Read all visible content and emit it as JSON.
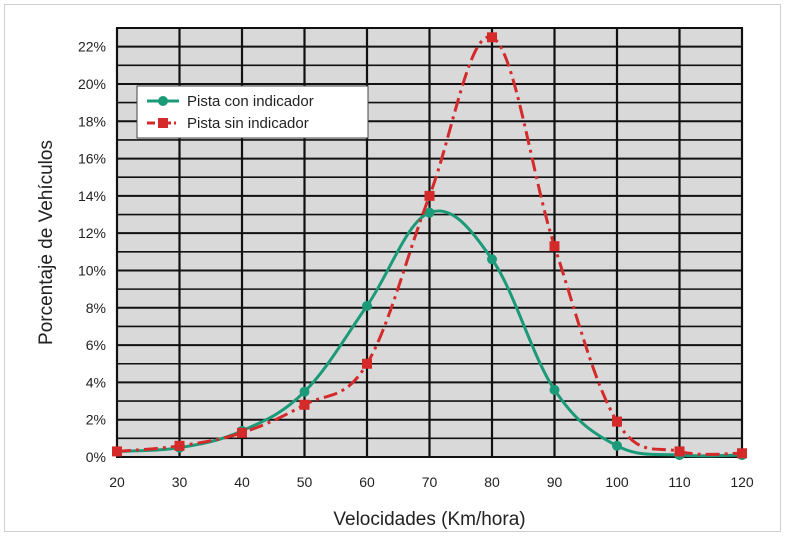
{
  "chart_data": {
    "type": "line",
    "xlabel": "Velocidades (Km/hora)",
    "ylabel": "Porcentaje de Vehículos",
    "x_ticks": [
      "20",
      "30",
      "40",
      "50",
      "60",
      "70",
      "80",
      "90",
      "100",
      "110",
      "120"
    ],
    "y_ticks": [
      "0%",
      "2%",
      "4%",
      "6%",
      "8%",
      "10%",
      "12%",
      "14%",
      "16%",
      "18%",
      "20%",
      "22%"
    ],
    "xlim": [
      20,
      120
    ],
    "ylim": [
      0,
      23
    ],
    "grid": true,
    "legend_position": "top-left",
    "series": [
      {
        "name": "Pista con indicador",
        "color": "#1a9a78",
        "marker": "circle",
        "line_style": "solid",
        "x": [
          20,
          30,
          40,
          50,
          60,
          70,
          80,
          90,
          100,
          110,
          120
        ],
        "y": [
          0.3,
          0.5,
          1.4,
          3.5,
          8.1,
          13.1,
          10.6,
          3.6,
          0.6,
          0.1,
          0.1
        ]
      },
      {
        "name": "Pista sin indicador",
        "color": "#d42a2a",
        "marker": "square",
        "line_style": "dash-dot",
        "x": [
          20,
          30,
          40,
          50,
          60,
          70,
          80,
          90,
          100,
          110,
          120
        ],
        "y": [
          0.3,
          0.6,
          1.3,
          2.8,
          5.0,
          14.0,
          22.5,
          11.3,
          1.9,
          0.3,
          0.2
        ]
      }
    ]
  }
}
